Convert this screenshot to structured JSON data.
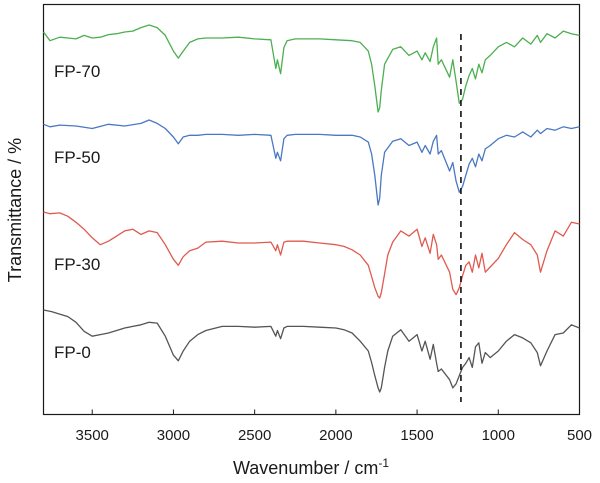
{
  "chart_data": {
    "type": "line",
    "title": "",
    "xlabel": "Wavenumber / cm",
    "xlabel_superscript": "-1",
    "ylabel": "Transmittance / %",
    "xlim": [
      3800,
      500
    ],
    "x_reversed": true,
    "xticks": [
      3500,
      3000,
      2500,
      2000,
      1500,
      1000,
      500
    ],
    "y_tick_labels_shown": false,
    "grid": false,
    "legend": "none; series labelled inline at left of each trace",
    "reference_line": {
      "x": 1230,
      "style": "dashed",
      "color": "#000000"
    },
    "y_units": "arbitrary, stacked traces (0 = baseline, 1 = top of trace band)",
    "series": [
      {
        "name": "FP-70",
        "color": "#4caf50",
        "x": [
          3800,
          3760,
          3700,
          3650,
          3600,
          3550,
          3500,
          3450,
          3400,
          3350,
          3300,
          3250,
          3200,
          3150,
          3100,
          3050,
          3000,
          2970,
          2940,
          2900,
          2850,
          2800,
          2700,
          2600,
          2500,
          2400,
          2370,
          2360,
          2340,
          2320,
          2300,
          2250,
          2200,
          2100,
          2000,
          1900,
          1850,
          1800,
          1780,
          1760,
          1740,
          1730,
          1720,
          1700,
          1650,
          1600,
          1550,
          1500,
          1470,
          1450,
          1420,
          1400,
          1380,
          1370,
          1350,
          1300,
          1280,
          1260,
          1240,
          1220,
          1200,
          1180,
          1160,
          1140,
          1120,
          1100,
          1080,
          1050,
          1000,
          950,
          900,
          850,
          800,
          760,
          740,
          700,
          650,
          600,
          550,
          500
        ],
        "y": [
          0.92,
          0.82,
          0.86,
          0.85,
          0.84,
          0.88,
          0.85,
          0.86,
          0.89,
          0.9,
          0.92,
          0.93,
          0.97,
          1.0,
          0.97,
          0.88,
          0.7,
          0.62,
          0.7,
          0.8,
          0.84,
          0.85,
          0.85,
          0.86,
          0.84,
          0.83,
          0.5,
          0.6,
          0.44,
          0.74,
          0.82,
          0.84,
          0.84,
          0.84,
          0.83,
          0.82,
          0.8,
          0.7,
          0.55,
          0.3,
          0.0,
          0.05,
          0.25,
          0.55,
          0.72,
          0.75,
          0.65,
          0.7,
          0.6,
          0.68,
          0.58,
          0.75,
          0.85,
          0.55,
          0.6,
          0.4,
          0.6,
          0.35,
          0.1,
          0.15,
          0.3,
          0.42,
          0.5,
          0.38,
          0.55,
          0.45,
          0.6,
          0.65,
          0.75,
          0.8,
          0.75,
          0.85,
          0.78,
          0.88,
          0.8,
          0.9,
          0.85,
          0.93,
          0.9,
          0.88
        ]
      },
      {
        "name": "FP-50",
        "color": "#4a78c2",
        "x": [
          3800,
          3760,
          3700,
          3600,
          3500,
          3400,
          3300,
          3200,
          3150,
          3100,
          3050,
          3000,
          2970,
          2940,
          2900,
          2850,
          2800,
          2700,
          2600,
          2500,
          2400,
          2370,
          2360,
          2340,
          2320,
          2300,
          2250,
          2200,
          2100,
          2000,
          1900,
          1850,
          1800,
          1780,
          1760,
          1740,
          1730,
          1720,
          1700,
          1650,
          1600,
          1550,
          1500,
          1470,
          1450,
          1420,
          1400,
          1380,
          1370,
          1350,
          1300,
          1280,
          1260,
          1240,
          1220,
          1200,
          1180,
          1160,
          1140,
          1120,
          1100,
          1080,
          1050,
          1000,
          950,
          900,
          850,
          800,
          760,
          740,
          700,
          650,
          600,
          550,
          500
        ],
        "y": [
          0.95,
          0.92,
          0.94,
          0.93,
          0.9,
          0.95,
          0.93,
          0.96,
          1.0,
          0.96,
          0.9,
          0.8,
          0.72,
          0.8,
          0.82,
          0.82,
          0.83,
          0.83,
          0.82,
          0.83,
          0.82,
          0.55,
          0.62,
          0.52,
          0.78,
          0.82,
          0.83,
          0.83,
          0.83,
          0.82,
          0.82,
          0.8,
          0.74,
          0.6,
          0.35,
          0.0,
          0.08,
          0.35,
          0.62,
          0.75,
          0.78,
          0.7,
          0.74,
          0.62,
          0.7,
          0.6,
          0.75,
          0.82,
          0.6,
          0.64,
          0.4,
          0.5,
          0.28,
          0.15,
          0.22,
          0.35,
          0.48,
          0.55,
          0.45,
          0.6,
          0.52,
          0.66,
          0.7,
          0.78,
          0.82,
          0.8,
          0.86,
          0.8,
          0.88,
          0.84,
          0.9,
          0.88,
          0.92,
          0.9,
          0.92
        ]
      },
      {
        "name": "FP-30",
        "color": "#e05a4f",
        "x": [
          3800,
          3760,
          3700,
          3650,
          3600,
          3550,
          3500,
          3450,
          3400,
          3350,
          3300,
          3250,
          3200,
          3150,
          3100,
          3050,
          3000,
          2970,
          2940,
          2900,
          2850,
          2800,
          2700,
          2600,
          2500,
          2400,
          2370,
          2360,
          2340,
          2320,
          2300,
          2250,
          2200,
          2100,
          2000,
          1950,
          1900,
          1850,
          1800,
          1780,
          1760,
          1740,
          1730,
          1720,
          1700,
          1680,
          1650,
          1600,
          1550,
          1500,
          1470,
          1450,
          1420,
          1400,
          1380,
          1370,
          1350,
          1300,
          1280,
          1260,
          1240,
          1220,
          1200,
          1180,
          1160,
          1140,
          1120,
          1100,
          1080,
          1050,
          1000,
          950,
          900,
          850,
          800,
          760,
          740,
          700,
          650,
          600,
          550,
          500
        ],
        "y": [
          1.0,
          0.98,
          0.99,
          0.95,
          0.88,
          0.8,
          0.7,
          0.62,
          0.66,
          0.72,
          0.78,
          0.8,
          0.74,
          0.78,
          0.76,
          0.62,
          0.45,
          0.38,
          0.48,
          0.55,
          0.58,
          0.65,
          0.66,
          0.64,
          0.64,
          0.65,
          0.55,
          0.62,
          0.5,
          0.65,
          0.66,
          0.66,
          0.66,
          0.64,
          0.62,
          0.6,
          0.56,
          0.5,
          0.38,
          0.25,
          0.12,
          0.02,
          0.0,
          0.06,
          0.28,
          0.5,
          0.65,
          0.78,
          0.72,
          0.8,
          0.6,
          0.7,
          0.52,
          0.74,
          0.62,
          0.45,
          0.5,
          0.3,
          0.1,
          0.04,
          0.12,
          0.26,
          0.38,
          0.42,
          0.3,
          0.5,
          0.35,
          0.52,
          0.3,
          0.36,
          0.46,
          0.62,
          0.76,
          0.68,
          0.62,
          0.5,
          0.3,
          0.55,
          0.78,
          0.72,
          0.88,
          0.86
        ]
      },
      {
        "name": "FP-0",
        "color": "#555555",
        "x": [
          3800,
          3750,
          3700,
          3650,
          3600,
          3550,
          3500,
          3450,
          3400,
          3350,
          3300,
          3250,
          3200,
          3150,
          3100,
          3050,
          3000,
          2970,
          2940,
          2900,
          2850,
          2800,
          2700,
          2600,
          2500,
          2400,
          2370,
          2360,
          2340,
          2320,
          2300,
          2250,
          2200,
          2100,
          2000,
          1950,
          1900,
          1850,
          1800,
          1780,
          1760,
          1740,
          1730,
          1720,
          1700,
          1680,
          1650,
          1600,
          1550,
          1500,
          1470,
          1450,
          1420,
          1400,
          1380,
          1370,
          1350,
          1300,
          1280,
          1260,
          1240,
          1220,
          1200,
          1180,
          1160,
          1140,
          1120,
          1100,
          1080,
          1050,
          1000,
          950,
          900,
          850,
          800,
          760,
          740,
          700,
          650,
          600,
          550,
          500
        ],
        "y": [
          1.0,
          0.98,
          0.95,
          0.92,
          0.85,
          0.74,
          0.68,
          0.7,
          0.72,
          0.75,
          0.78,
          0.8,
          0.82,
          0.85,
          0.84,
          0.68,
          0.45,
          0.38,
          0.5,
          0.62,
          0.7,
          0.75,
          0.8,
          0.8,
          0.79,
          0.8,
          0.68,
          0.75,
          0.65,
          0.78,
          0.8,
          0.8,
          0.8,
          0.79,
          0.78,
          0.76,
          0.72,
          0.62,
          0.5,
          0.36,
          0.2,
          0.05,
          0.0,
          0.05,
          0.3,
          0.5,
          0.68,
          0.76,
          0.62,
          0.7,
          0.5,
          0.62,
          0.4,
          0.58,
          0.35,
          0.25,
          0.28,
          0.15,
          0.05,
          0.1,
          0.2,
          0.3,
          0.35,
          0.42,
          0.3,
          0.55,
          0.6,
          0.35,
          0.48,
          0.42,
          0.5,
          0.62,
          0.7,
          0.66,
          0.6,
          0.48,
          0.32,
          0.5,
          0.7,
          0.72,
          0.82,
          0.78
        ]
      }
    ]
  }
}
